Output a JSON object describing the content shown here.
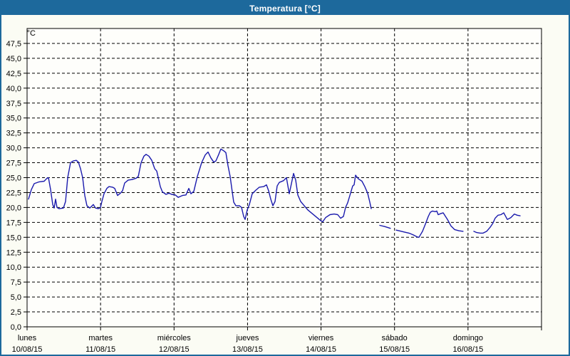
{
  "window": {
    "title": "Temperatura [°C]",
    "frame_color": "#1d699c",
    "title_text_color": "#ffffff",
    "content_background": "#fbfcf4"
  },
  "chart_data": {
    "type": "line",
    "title": "Temperatura [°C]",
    "plot_background": "#fefefb",
    "grid": true,
    "grid_style": "dashed",
    "grid_color": "#000000",
    "legend": "none",
    "y_axis": {
      "unit_label": "°C",
      "min": 0,
      "max": 50,
      "grid_step": 2.5,
      "tick_labels": [
        "0,0",
        "2,5",
        "5,0",
        "7,5",
        "10,0",
        "12,5",
        "15,0",
        "17,5",
        "20,0",
        "22,5",
        "25,0",
        "27,5",
        "30,0",
        "32,5",
        "35,0",
        "37,5",
        "40,0",
        "42,5",
        "45,0",
        "47,5"
      ]
    },
    "x_axis": {
      "days": [
        {
          "name": "lunes",
          "date": "10/08/15"
        },
        {
          "name": "martes",
          "date": "11/08/15"
        },
        {
          "name": "miércoles",
          "date": "12/08/15"
        },
        {
          "name": "jueves",
          "date": "13/08/15"
        },
        {
          "name": "viernes",
          "date": "14/08/15"
        },
        {
          "name": "sábado",
          "date": "15/08/15"
        },
        {
          "name": "domingo",
          "date": "16/08/15"
        }
      ]
    },
    "series": [
      {
        "name": "Temperatura",
        "color": "#1a1aad",
        "x_unit": "days_from_10_08_15",
        "segments": [
          [
            [
              0.019,
              21.4
            ],
            [
              0.058,
              23.0
            ],
            [
              0.097,
              24.0
            ],
            [
              0.165,
              24.3
            ],
            [
              0.233,
              24.4
            ],
            [
              0.271,
              24.9
            ],
            [
              0.291,
              25.0
            ],
            [
              0.32,
              23.0
            ],
            [
              0.349,
              20.5
            ],
            [
              0.368,
              19.9
            ],
            [
              0.388,
              21.4
            ],
            [
              0.407,
              20.0
            ],
            [
              0.436,
              19.8
            ],
            [
              0.494,
              19.9
            ],
            [
              0.524,
              21.0
            ],
            [
              0.553,
              25.0
            ],
            [
              0.591,
              27.5
            ],
            [
              0.63,
              27.8
            ],
            [
              0.669,
              27.9
            ],
            [
              0.698,
              27.6
            ],
            [
              0.727,
              26.5
            ],
            [
              0.756,
              25.0
            ],
            [
              0.785,
              22.0
            ],
            [
              0.814,
              20.3
            ],
            [
              0.853,
              19.9
            ],
            [
              0.902,
              20.5
            ],
            [
              0.931,
              19.9
            ],
            [
              0.97,
              19.8
            ],
            [
              0.999,
              20.0
            ],
            [
              1.018,
              21.0
            ],
            [
              1.047,
              22.3
            ],
            [
              1.086,
              23.2
            ],
            [
              1.115,
              23.5
            ],
            [
              1.163,
              23.4
            ],
            [
              1.193,
              23.2
            ],
            [
              1.231,
              22.0
            ],
            [
              1.27,
              22.4
            ],
            [
              1.299,
              22.8
            ],
            [
              1.328,
              24.1
            ],
            [
              1.377,
              24.6
            ],
            [
              1.435,
              24.7
            ],
            [
              1.483,
              24.9
            ],
            [
              1.513,
              25.2
            ],
            [
              1.551,
              27.5
            ],
            [
              1.59,
              28.6
            ],
            [
              1.619,
              28.9
            ],
            [
              1.658,
              28.6
            ],
            [
              1.697,
              27.9
            ],
            [
              1.736,
              26.5
            ],
            [
              1.765,
              26.1
            ],
            [
              1.813,
              23.5
            ],
            [
              1.842,
              22.6
            ],
            [
              1.891,
              22.2
            ],
            [
              1.93,
              22.4
            ],
            [
              1.968,
              22.2
            ],
            [
              2.017,
              22.1
            ],
            [
              2.056,
              21.7
            ],
            [
              2.114,
              22.0
            ],
            [
              2.162,
              22.1
            ],
            [
              2.201,
              23.2
            ],
            [
              2.23,
              22.3
            ],
            [
              2.269,
              22.7
            ],
            [
              2.317,
              25.2
            ],
            [
              2.375,
              27.5
            ],
            [
              2.424,
              28.8
            ],
            [
              2.463,
              29.3
            ],
            [
              2.501,
              28.3
            ],
            [
              2.54,
              27.6
            ],
            [
              2.569,
              27.8
            ],
            [
              2.608,
              28.9
            ],
            [
              2.637,
              29.8
            ],
            [
              2.676,
              29.5
            ],
            [
              2.705,
              29.2
            ],
            [
              2.734,
              27.0
            ],
            [
              2.763,
              25.2
            ],
            [
              2.793,
              22.5
            ],
            [
              2.812,
              20.9
            ],
            [
              2.841,
              20.3
            ],
            [
              2.889,
              20.3
            ],
            [
              2.918,
              20.0
            ],
            [
              2.947,
              18.5
            ],
            [
              2.967,
              18.0
            ],
            [
              2.996,
              19.6
            ],
            [
              3.025,
              20.5
            ],
            [
              3.064,
              22.3
            ],
            [
              3.112,
              22.9
            ],
            [
              3.161,
              23.4
            ],
            [
              3.219,
              23.5
            ],
            [
              3.258,
              23.8
            ],
            [
              3.287,
              22.8
            ],
            [
              3.316,
              21.4
            ],
            [
              3.345,
              20.3
            ],
            [
              3.374,
              21.0
            ],
            [
              3.403,
              23.6
            ],
            [
              3.432,
              24.2
            ],
            [
              3.49,
              24.5
            ],
            [
              3.529,
              25.0
            ],
            [
              3.568,
              22.3
            ],
            [
              3.597,
              24.0
            ],
            [
              3.626,
              25.7
            ],
            [
              3.655,
              24.6
            ],
            [
              3.684,
              22.1
            ],
            [
              3.723,
              21.0
            ],
            [
              3.771,
              20.3
            ],
            [
              3.82,
              19.6
            ],
            [
              3.878,
              19.0
            ],
            [
              3.936,
              18.4
            ],
            [
              3.994,
              17.8
            ],
            [
              4.023,
              17.6
            ],
            [
              4.062,
              18.3
            ],
            [
              4.121,
              18.8
            ],
            [
              4.179,
              18.9
            ],
            [
              4.227,
              18.8
            ],
            [
              4.266,
              18.2
            ],
            [
              4.305,
              18.5
            ],
            [
              4.334,
              20.0
            ],
            [
              4.363,
              20.8
            ],
            [
              4.402,
              22.4
            ],
            [
              4.431,
              23.6
            ],
            [
              4.45,
              23.8
            ],
            [
              4.47,
              25.4
            ],
            [
              4.508,
              24.8
            ],
            [
              4.557,
              24.4
            ],
            [
              4.596,
              23.5
            ],
            [
              4.634,
              22.4
            ],
            [
              4.663,
              20.9
            ],
            [
              4.683,
              19.8
            ]
          ],
          [
            [
              4.799,
              17.0
            ],
            [
              4.867,
              16.8
            ],
            [
              4.944,
              16.5
            ]
          ],
          [
            [
              5.022,
              16.2
            ],
            [
              5.061,
              16.1
            ],
            [
              5.129,
              15.9
            ],
            [
              5.197,
              15.7
            ],
            [
              5.255,
              15.4
            ],
            [
              5.303,
              15.1
            ],
            [
              5.332,
              15.0
            ],
            [
              5.381,
              16.0
            ],
            [
              5.42,
              17.2
            ],
            [
              5.459,
              18.5
            ],
            [
              5.488,
              19.2
            ],
            [
              5.517,
              19.4
            ],
            [
              5.556,
              19.3
            ],
            [
              5.575,
              19.4
            ],
            [
              5.594,
              18.8
            ],
            [
              5.633,
              19.0
            ],
            [
              5.662,
              19.1
            ],
            [
              5.72,
              18.0
            ],
            [
              5.769,
              16.9
            ],
            [
              5.817,
              16.3
            ],
            [
              5.875,
              16.1
            ],
            [
              5.933,
              16.0
            ]
          ],
          [
            [
              6.079,
              16.0
            ],
            [
              6.118,
              15.8
            ],
            [
              6.166,
              15.7
            ],
            [
              6.205,
              15.7
            ],
            [
              6.253,
              16.0
            ],
            [
              6.302,
              16.7
            ],
            [
              6.34,
              17.4
            ],
            [
              6.369,
              18.2
            ],
            [
              6.408,
              18.7
            ],
            [
              6.447,
              18.8
            ],
            [
              6.486,
              19.1
            ],
            [
              6.535,
              18.0
            ],
            [
              6.583,
              18.3
            ],
            [
              6.631,
              18.9
            ],
            [
              6.67,
              18.7
            ],
            [
              6.709,
              18.6
            ]
          ]
        ]
      }
    ]
  }
}
